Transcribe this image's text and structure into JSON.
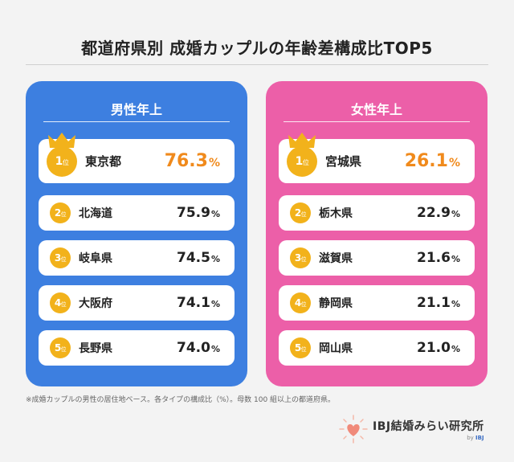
{
  "title": "都道府県別 成婚カップルの年齢差構成比TOP5",
  "rank_suffix": "位",
  "percent_sign": "%",
  "accent": {
    "male": "#3d7fe0",
    "female": "#ec5fa8",
    "gold": "#f2b21b",
    "top_value": "#f08a1c"
  },
  "male": {
    "heading": "男性年上",
    "ranks": [
      {
        "rank": "1",
        "prefecture": "東京都",
        "value": "76.3"
      },
      {
        "rank": "2",
        "prefecture": "北海道",
        "value": "75.9"
      },
      {
        "rank": "3",
        "prefecture": "岐阜県",
        "value": "74.5"
      },
      {
        "rank": "4",
        "prefecture": "大阪府",
        "value": "74.1"
      },
      {
        "rank": "5",
        "prefecture": "長野県",
        "value": "74.0"
      }
    ]
  },
  "female": {
    "heading": "女性年上",
    "ranks": [
      {
        "rank": "1",
        "prefecture": "宮城県",
        "value": "26.1"
      },
      {
        "rank": "2",
        "prefecture": "栃木県",
        "value": "22.9"
      },
      {
        "rank": "3",
        "prefecture": "滋賀県",
        "value": "21.6"
      },
      {
        "rank": "4",
        "prefecture": "静岡県",
        "value": "21.1"
      },
      {
        "rank": "5",
        "prefecture": "岡山県",
        "value": "21.0"
      }
    ]
  },
  "note": "※成婚カップルの男性の居住地ベース。各タイプの構成比（%）。母数 100 組以上の都道府県。",
  "logo": {
    "name": "IBJ結婚みらい研究所",
    "by": "by",
    "brand": "IBJ",
    "icon": "heart-icon"
  }
}
